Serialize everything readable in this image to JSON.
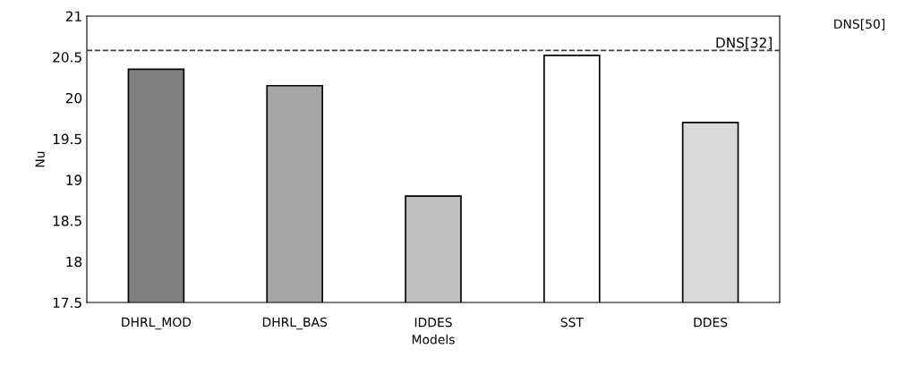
{
  "chart_data": {
    "type": "bar",
    "xlabel": "Models",
    "ylabel": "Nu",
    "categories": [
      "DHRL_MOD",
      "DHRL_BAS",
      "IDDES",
      "SST",
      "DDES"
    ],
    "values": [
      20.35,
      20.15,
      18.8,
      20.52,
      19.7
    ],
    "colors": [
      "#808080",
      "#a6a6a6",
      "#bfbfbf",
      "#ffffff",
      "#d9d9d9"
    ],
    "ylim": [
      17.5,
      21
    ],
    "yticks": [
      17.5,
      18,
      18.5,
      19,
      19.5,
      20,
      20.5,
      21
    ],
    "ref_lines": [
      {
        "axis": "y",
        "value": 20.58,
        "label": "DNS[32]",
        "line_style": "dashed",
        "color": "#404040"
      }
    ],
    "annotations": [
      "DNS[50]"
    ],
    "grid": false,
    "legend": false
  }
}
